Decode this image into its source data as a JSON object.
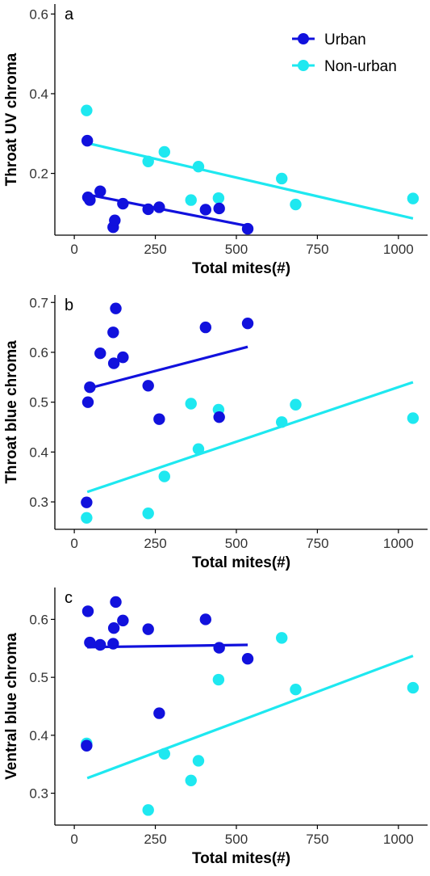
{
  "colors": {
    "urban": "#1111dd",
    "non_urban": "#1ee8f0",
    "axis": "#000000"
  },
  "legend": [
    {
      "key": "urban",
      "label": "Urban"
    },
    {
      "key": "non_urban",
      "label": "Non-urban"
    }
  ],
  "chart_data": [
    {
      "type": "scatter",
      "panel_label": "a",
      "xlabel": "Total mites(#)",
      "ylabel": "Throat UV chroma",
      "xlim": [
        -60,
        1090
      ],
      "ylim": [
        0.045,
        0.625
      ],
      "xticks": [
        0,
        250,
        500,
        750,
        1000
      ],
      "yticks": [
        0.2,
        0.4,
        0.6
      ],
      "ytick_labels": [
        "0.2",
        "0.4",
        "0.6"
      ],
      "series": [
        {
          "name": "Urban",
          "key": "urban",
          "points": [
            [
              40,
              0.282
            ],
            [
              42,
              0.14
            ],
            [
              48,
              0.133
            ],
            [
              80,
              0.155
            ],
            [
              120,
              0.065
            ],
            [
              125,
              0.082
            ],
            [
              150,
              0.124
            ],
            [
              228,
              0.11
            ],
            [
              262,
              0.115
            ],
            [
              405,
              0.109
            ],
            [
              447,
              0.112
            ],
            [
              535,
              0.061
            ]
          ],
          "fit": [
            [
              40,
              0.147
            ],
            [
              535,
              0.068
            ]
          ]
        },
        {
          "name": "Non-urban",
          "key": "non_urban",
          "points": [
            [
              38,
              0.358
            ],
            [
              228,
              0.23
            ],
            [
              278,
              0.254
            ],
            [
              360,
              0.133
            ],
            [
              383,
              0.217
            ],
            [
              445,
              0.138
            ],
            [
              640,
              0.187
            ],
            [
              683,
              0.122
            ],
            [
              1045,
              0.137
            ]
          ],
          "fit": [
            [
              40,
              0.276
            ],
            [
              1045,
              0.087
            ]
          ]
        }
      ]
    },
    {
      "type": "scatter",
      "panel_label": "b",
      "xlabel": "Total mites(#)",
      "ylabel": "Throat blue chroma",
      "xlim": [
        -60,
        1090
      ],
      "ylim": [
        0.245,
        0.715
      ],
      "xticks": [
        0,
        250,
        500,
        750,
        1000
      ],
      "yticks": [
        0.3,
        0.4,
        0.5,
        0.6,
        0.7
      ],
      "ytick_labels": [
        "0.3",
        "0.4",
        "0.5",
        "0.6",
        "0.7"
      ],
      "series": [
        {
          "name": "Urban",
          "key": "urban",
          "points": [
            [
              38,
              0.299
            ],
            [
              42,
              0.5
            ],
            [
              48,
              0.53
            ],
            [
              80,
              0.598
            ],
            [
              120,
              0.64
            ],
            [
              122,
              0.578
            ],
            [
              128,
              0.688
            ],
            [
              150,
              0.59
            ],
            [
              228,
              0.533
            ],
            [
              262,
              0.466
            ],
            [
              405,
              0.65
            ],
            [
              447,
              0.47
            ],
            [
              535,
              0.658
            ]
          ],
          "fit": [
            [
              40,
              0.527
            ],
            [
              535,
              0.611
            ]
          ]
        },
        {
          "name": "Non-urban",
          "key": "non_urban",
          "points": [
            [
              38,
              0.268
            ],
            [
              228,
              0.277
            ],
            [
              278,
              0.351
            ],
            [
              360,
              0.497
            ],
            [
              383,
              0.406
            ],
            [
              445,
              0.485
            ],
            [
              640,
              0.46
            ],
            [
              683,
              0.495
            ],
            [
              1045,
              0.468
            ]
          ],
          "fit": [
            [
              40,
              0.32
            ],
            [
              1045,
              0.54
            ]
          ]
        }
      ]
    },
    {
      "type": "scatter",
      "panel_label": "c",
      "xlabel": "Total mites(#)",
      "ylabel": "Ventral blue chroma",
      "xlim": [
        -60,
        1090
      ],
      "ylim": [
        0.245,
        0.655
      ],
      "xticks": [
        0,
        250,
        500,
        750,
        1000
      ],
      "yticks": [
        0.3,
        0.4,
        0.5,
        0.6
      ],
      "ytick_labels": [
        "0.3",
        "0.4",
        "0.5",
        "0.6"
      ],
      "series": [
        {
          "name": "Urban",
          "key": "urban",
          "points": [
            [
              38,
              0.382
            ],
            [
              42,
              0.614
            ],
            [
              48,
              0.56
            ],
            [
              80,
              0.556
            ],
            [
              120,
              0.558
            ],
            [
              122,
              0.585
            ],
            [
              128,
              0.63
            ],
            [
              150,
              0.598
            ],
            [
              228,
              0.583
            ],
            [
              262,
              0.438
            ],
            [
              405,
              0.6
            ],
            [
              447,
              0.551
            ],
            [
              535,
              0.532
            ]
          ],
          "fit": [
            [
              40,
              0.552
            ],
            [
              535,
              0.556
            ]
          ]
        },
        {
          "name": "Non-urban",
          "key": "non_urban",
          "points": [
            [
              38,
              0.386
            ],
            [
              228,
              0.271
            ],
            [
              278,
              0.368
            ],
            [
              360,
              0.322
            ],
            [
              383,
              0.356
            ],
            [
              445,
              0.496
            ],
            [
              640,
              0.568
            ],
            [
              683,
              0.479
            ],
            [
              1045,
              0.482
            ]
          ],
          "fit": [
            [
              40,
              0.326
            ],
            [
              1045,
              0.537
            ]
          ]
        }
      ]
    }
  ]
}
